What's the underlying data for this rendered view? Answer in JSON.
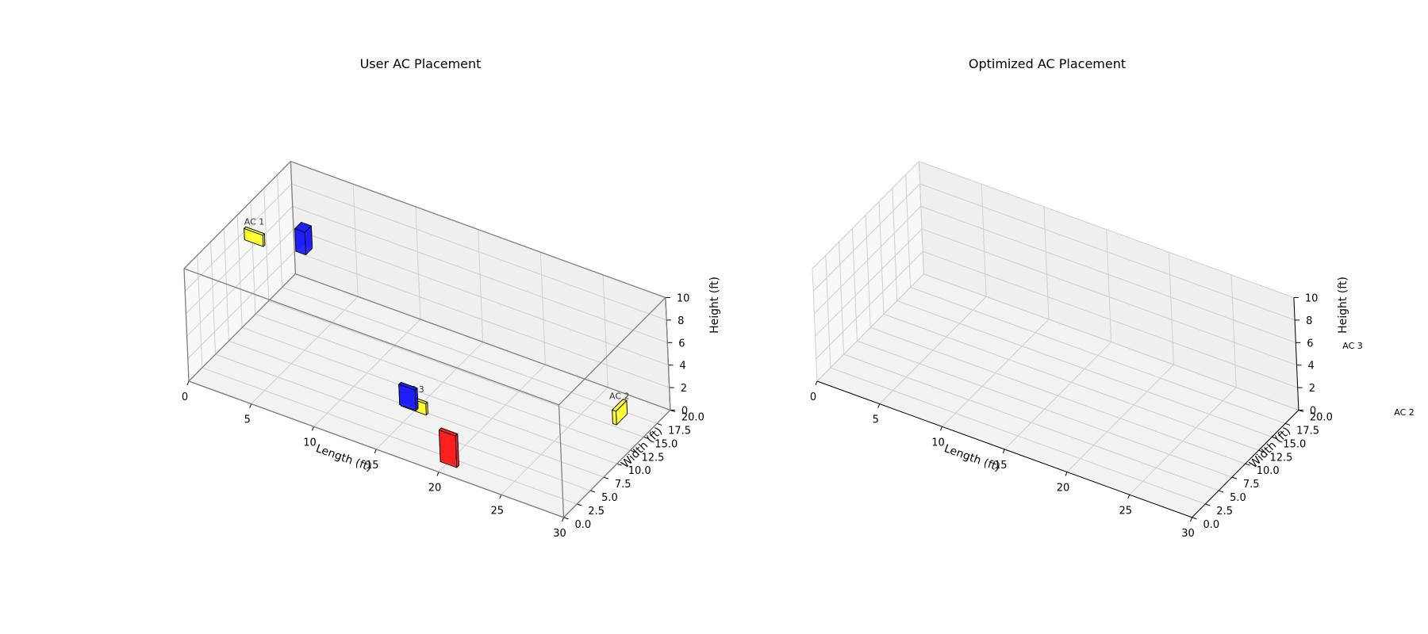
{
  "chart_data": [
    {
      "type": "scatter",
      "title": "User AC Placement",
      "xlabel": "Length (ft)",
      "ylabel": "Width (ft)",
      "zlabel": "Height (ft)",
      "xlim": [
        0,
        30
      ],
      "ylim": [
        0,
        20
      ],
      "zlim": [
        0,
        10
      ],
      "xticks": [
        "0",
        "5",
        "10",
        "15",
        "20",
        "25",
        "30"
      ],
      "yticks": [
        "0.0",
        "2.5",
        "5.0",
        "7.5",
        "10.0",
        "12.5",
        "15.0",
        "17.5",
        "20.0"
      ],
      "zticks": [
        "0",
        "2",
        "4",
        "6",
        "8",
        "10"
      ],
      "grid": true,
      "room_outline_color": "#808080",
      "objects": [
        {
          "kind": "ac",
          "label": "AC 1",
          "color": "#ffff33",
          "position": [
            0.5,
            10,
            8
          ],
          "size": [
            1.5,
            0.3,
            1.0
          ]
        },
        {
          "kind": "ac",
          "label": "AC 2",
          "color": "#ffff33",
          "position": [
            29.8,
            10,
            3.5
          ],
          "size": [
            0.3,
            2.0,
            1.2
          ]
        },
        {
          "kind": "ac",
          "label": "AC 3",
          "color": "#ffff33",
          "position": [
            14.7,
            5.5,
            1.1
          ],
          "size": [
            2.0,
            0.3,
            1.0
          ]
        },
        {
          "kind": "obstacle",
          "label": "",
          "color": "#1f1fff",
          "position": [
            3.5,
            12.5,
            7
          ],
          "size": [
            0.8,
            1.2,
            2.0
          ]
        },
        {
          "kind": "obstacle",
          "label": "",
          "color": "#1f1fff",
          "position": [
            14.8,
            5.0,
            1.5
          ],
          "size": [
            1.3,
            0.4,
            1.8
          ]
        },
        {
          "kind": "obstacle",
          "label": "",
          "color": "#ff2020",
          "position": [
            19.5,
            1.5,
            0
          ],
          "size": [
            1.3,
            0.4,
            2.8
          ]
        }
      ]
    },
    {
      "type": "scatter",
      "title": "Optimized AC Placement",
      "xlabel": "Length (ft)",
      "ylabel": "Width (ft)",
      "zlabel": "Height (ft)",
      "xlim": [
        0,
        30
      ],
      "ylim": [
        0,
        20
      ],
      "zlim": [
        0,
        10
      ],
      "xticks": [
        "0",
        "5",
        "10",
        "15",
        "20",
        "25",
        "30"
      ],
      "yticks": [
        "0.0",
        "2.5",
        "5.0",
        "7.5",
        "10.0",
        "12.5",
        "15.0",
        "17.5",
        "20.0"
      ],
      "zticks": [
        "0",
        "2",
        "4",
        "6",
        "8",
        "10"
      ],
      "grid": true,
      "objects": [],
      "outside_labels": [
        "AC 3",
        "AC 2"
      ]
    }
  ]
}
